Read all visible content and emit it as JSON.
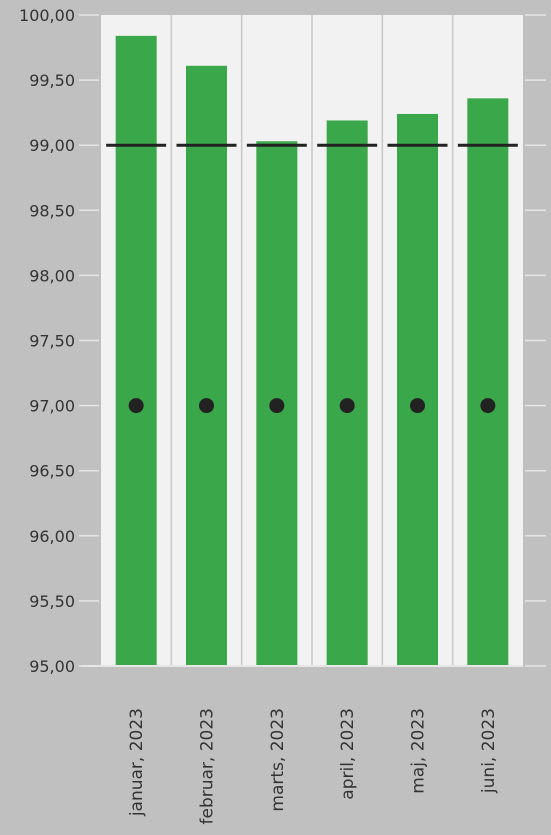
{
  "chart_data": {
    "type": "bar",
    "categories": [
      "januar, 2023",
      "februar, 2023",
      "marts, 2023",
      "april, 2023",
      "maj, 2023",
      "juni, 2023"
    ],
    "series": [
      {
        "values": [
          99.84,
          99.61,
          99.03,
          99.19,
          99.24,
          99.36
        ],
        "color": "#3aa84a"
      }
    ],
    "target_line": {
      "values": [
        99.0,
        99.0,
        99.0,
        99.0,
        99.0,
        99.0
      ],
      "color": "#222222"
    },
    "threshold_points": {
      "values": [
        97.0,
        97.0,
        97.0,
        97.0,
        97.0,
        97.0
      ],
      "color": "#222222"
    },
    "ylim": [
      95.0,
      100.0
    ],
    "yticks": [
      {
        "value": 95.0,
        "label": "95,00"
      },
      {
        "value": 95.5,
        "label": "95,50"
      },
      {
        "value": 96.0,
        "label": "96,00"
      },
      {
        "value": 96.5,
        "label": "96,50"
      },
      {
        "value": 97.0,
        "label": "97,00"
      },
      {
        "value": 97.5,
        "label": "97,50"
      },
      {
        "value": 98.0,
        "label": "98,00"
      },
      {
        "value": 98.5,
        "label": "98,50"
      },
      {
        "value": 99.0,
        "label": "99,00"
      },
      {
        "value": 99.5,
        "label": "99,50"
      },
      {
        "value": 100.0,
        "label": "100,00"
      }
    ],
    "grid": true,
    "plot_background": "#f2f2f2",
    "outer_background": "#c0c0c0",
    "title": "",
    "xlabel": "",
    "ylabel": ""
  }
}
